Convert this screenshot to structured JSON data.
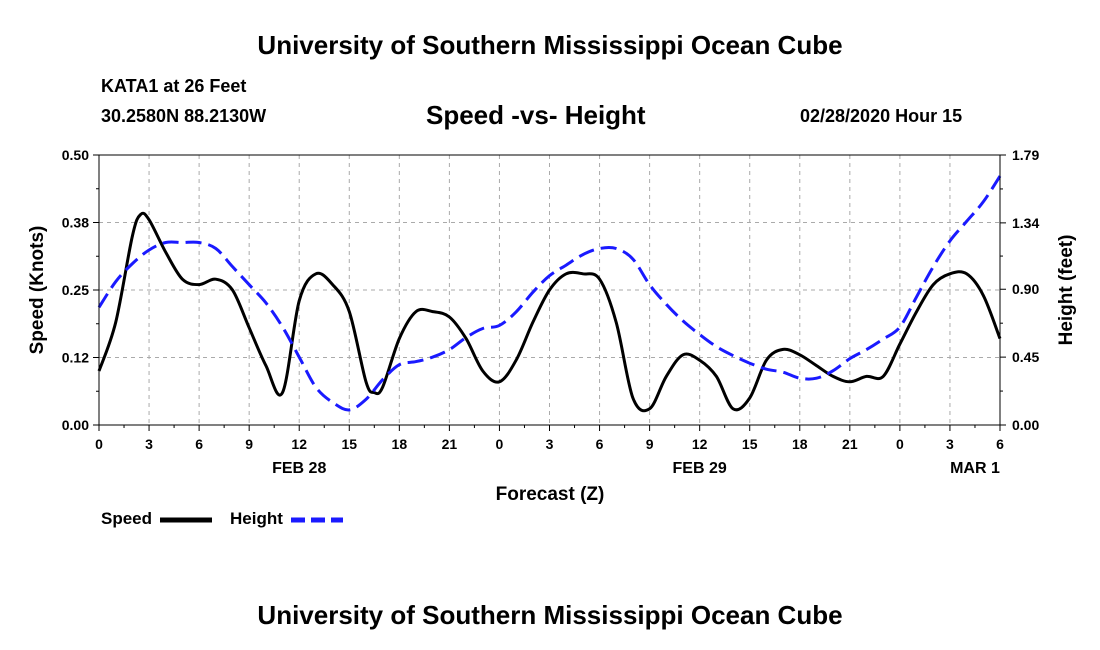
{
  "header": {
    "title": "University of Southern Mississippi Ocean Cube",
    "station": "KATA1 at 26 Feet",
    "coords": "30.2580N 88.2130W",
    "chart_title": "Speed -vs- Height",
    "datetime": "02/28/2020 Hour 15"
  },
  "footer": {
    "title": "University of Southern Mississippi Ocean Cube"
  },
  "colors": {
    "speed": "#000000",
    "height": "#1a1aff",
    "grid": "#aaaaaa"
  },
  "chart_data": {
    "type": "line",
    "title": "Speed -vs- Height",
    "xlabel": "Forecast (Z)",
    "ylabel": "Speed (Knots)",
    "y2label": "Height (feet)",
    "x_ticks": [
      0,
      3,
      6,
      9,
      12,
      15,
      18,
      21,
      24,
      27,
      30,
      33,
      36,
      39,
      42,
      45,
      48,
      51,
      54
    ],
    "x_tick_labels": [
      "0",
      "3",
      "6",
      "9",
      "12",
      "15",
      "18",
      "21",
      "0",
      "3",
      "6",
      "9",
      "12",
      "15",
      "18",
      "21",
      "0",
      "3",
      "6"
    ],
    "date_labels": [
      {
        "x": 12,
        "label": "FEB 28"
      },
      {
        "x": 36,
        "label": "FEB 29"
      },
      {
        "x": 52.5,
        "label": "MAR 1"
      }
    ],
    "xlim": [
      0,
      54
    ],
    "ylim": [
      0,
      0.5
    ],
    "y_ticks": [
      0,
      0.125,
      0.25,
      0.375,
      0.5
    ],
    "y_tick_labels": [
      "0.00",
      "0.12",
      "0.25",
      "0.38",
      "0.50"
    ],
    "y2lim": [
      0,
      1.79
    ],
    "y2_ticks": [
      0,
      0.45,
      0.9,
      1.34,
      1.79
    ],
    "y2_tick_labels": [
      "0.00",
      "0.45",
      "0.90",
      "1.34",
      "1.79"
    ],
    "legend": [
      {
        "name": "Speed",
        "style": "solid"
      },
      {
        "name": "Height",
        "style": "dashed"
      }
    ],
    "legend_placement": "bottom-left",
    "series": [
      {
        "name": "Speed",
        "axis": "left",
        "x": [
          0,
          1,
          2,
          2.5,
          3,
          4,
          5,
          6,
          7,
          8,
          9,
          10,
          11,
          12,
          13,
          14,
          15,
          16,
          16.5,
          17,
          18,
          19,
          20,
          21,
          22,
          23,
          24,
          25,
          26,
          27,
          28,
          29,
          30,
          31,
          32,
          33,
          34,
          35,
          36,
          37,
          38,
          39,
          40,
          41,
          42,
          43,
          44,
          45,
          46,
          47,
          48,
          49,
          50,
          51,
          52,
          53,
          54
        ],
        "y": [
          0.1,
          0.19,
          0.35,
          0.39,
          0.38,
          0.32,
          0.27,
          0.26,
          0.27,
          0.25,
          0.18,
          0.11,
          0.06,
          0.23,
          0.28,
          0.26,
          0.21,
          0.08,
          0.06,
          0.07,
          0.16,
          0.21,
          0.21,
          0.2,
          0.16,
          0.1,
          0.08,
          0.12,
          0.19,
          0.25,
          0.28,
          0.28,
          0.27,
          0.19,
          0.05,
          0.03,
          0.09,
          0.13,
          0.12,
          0.09,
          0.03,
          0.05,
          0.12,
          0.14,
          0.13,
          0.11,
          0.09,
          0.08,
          0.09,
          0.09,
          0.15,
          0.21,
          0.26,
          0.28,
          0.28,
          0.24,
          0.16
        ]
      },
      {
        "name": "Height",
        "axis": "right",
        "x": [
          0,
          1,
          2,
          3,
          4,
          5,
          6,
          7,
          8,
          9,
          10,
          11,
          12,
          13,
          14,
          15,
          16,
          17,
          18,
          19,
          20,
          21,
          22,
          23,
          24,
          25,
          26,
          27,
          28,
          29,
          30,
          31,
          32,
          33,
          34,
          35,
          36,
          37,
          38,
          39,
          40,
          41,
          42,
          43,
          44,
          45,
          46,
          47,
          48,
          49,
          50,
          51,
          52,
          53,
          54
        ],
        "y": [
          0.78,
          0.95,
          1.07,
          1.16,
          1.21,
          1.21,
          1.21,
          1.17,
          1.05,
          0.93,
          0.81,
          0.65,
          0.45,
          0.25,
          0.15,
          0.1,
          0.17,
          0.3,
          0.4,
          0.42,
          0.45,
          0.5,
          0.58,
          0.64,
          0.66,
          0.75,
          0.88,
          0.99,
          1.06,
          1.13,
          1.17,
          1.17,
          1.1,
          0.93,
          0.8,
          0.69,
          0.6,
          0.52,
          0.46,
          0.41,
          0.37,
          0.35,
          0.31,
          0.31,
          0.36,
          0.44,
          0.5,
          0.57,
          0.65,
          0.85,
          1.05,
          1.22,
          1.35,
          1.48,
          1.65
        ]
      }
    ]
  }
}
